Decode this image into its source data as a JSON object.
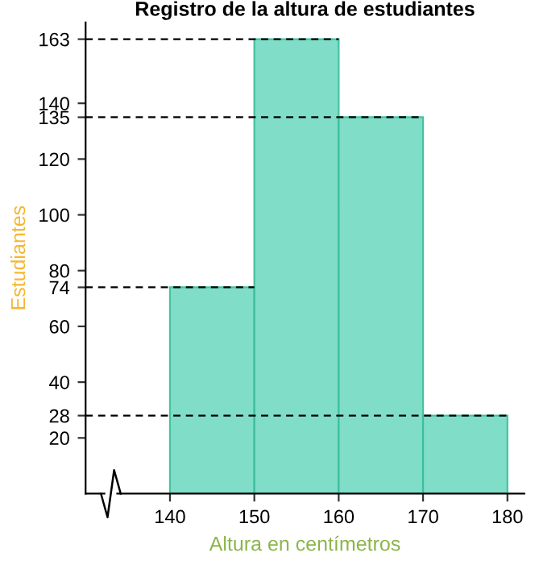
{
  "chart_data": {
    "type": "histogram",
    "title": "Registro de la altura de estudiantes",
    "xlabel": "Altura en centímetros",
    "ylabel": "Estudiantes",
    "bins": [
      140,
      150,
      160,
      170,
      180
    ],
    "values": [
      74,
      163,
      135,
      28
    ],
    "color": "#7adcc6",
    "xlim": [
      130,
      182
    ],
    "xticks": [
      140,
      150,
      160,
      170,
      180
    ],
    "ylim": [
      0,
      169
    ],
    "yticks": [
      20,
      28,
      40,
      60,
      74,
      80,
      100,
      120,
      135,
      140,
      163
    ],
    "ref_lines": [
      {
        "axis": "y",
        "value": 163,
        "color": "#000000",
        "line_style": "dashed"
      },
      {
        "axis": "y",
        "value": 135,
        "color": "#000000",
        "line_style": "dashed"
      },
      {
        "axis": "y",
        "value": 74,
        "color": "#000000",
        "line_style": "dashed"
      },
      {
        "axis": "y",
        "value": 28,
        "color": "#000000",
        "line_style": "dashed"
      }
    ],
    "grid": false,
    "legend": false
  }
}
